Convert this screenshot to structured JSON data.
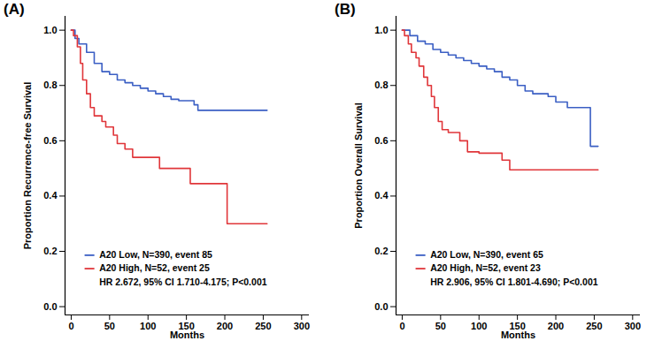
{
  "chart_data": [
    {
      "type": "line",
      "title": "(A)",
      "x_label": "Months",
      "y_label": "Proportion Recurrence-free Survival",
      "xlim": [
        -8,
        310
      ],
      "xticks": [
        0,
        50,
        100,
        150,
        200,
        250,
        300
      ],
      "ylim": [
        -0.03,
        1.05
      ],
      "yticks": [
        {
          "value": 0,
          "label": "0.0"
        },
        {
          "value": 0.2,
          "label": "0.2"
        },
        {
          "value": 0.4,
          "label": "0.4"
        },
        {
          "value": 0.6,
          "label": "0.6"
        },
        {
          "value": 0.8,
          "label": "0.8"
        },
        {
          "value": 1,
          "label": "1.0"
        }
      ],
      "legend": "bottom-left",
      "line_style": "step",
      "annotations": [
        "HR 2.672, 95% CI 1.710-4.175; P<0.001"
      ],
      "series": [
        {
          "name": "A20 Low, N=390, event 85",
          "color": "#3b5fc4",
          "x": [
            0,
            5,
            10,
            20,
            30,
            40,
            50,
            60,
            70,
            80,
            90,
            100,
            110,
            120,
            130,
            140,
            160,
            165,
            255
          ],
          "values": [
            1.0,
            0.97,
            0.95,
            0.92,
            0.88,
            0.85,
            0.84,
            0.82,
            0.81,
            0.8,
            0.79,
            0.78,
            0.77,
            0.76,
            0.75,
            0.745,
            0.73,
            0.71,
            0.71
          ]
        },
        {
          "name": "A20 High, N=52, event 25",
          "color": "#e0363a",
          "x": [
            0,
            3,
            8,
            12,
            15,
            20,
            25,
            30,
            40,
            45,
            55,
            60,
            70,
            80,
            115,
            155,
            203,
            255
          ],
          "values": [
            1.0,
            0.98,
            0.94,
            0.88,
            0.82,
            0.77,
            0.72,
            0.69,
            0.67,
            0.65,
            0.62,
            0.59,
            0.57,
            0.54,
            0.5,
            0.445,
            0.3,
            0.3
          ]
        }
      ]
    },
    {
      "type": "line",
      "title": "(B)",
      "x_label": "Months",
      "y_label": "Proportion Overall Survival",
      "xlim": [
        -8,
        310
      ],
      "xticks": [
        0,
        50,
        100,
        150,
        200,
        250,
        300
      ],
      "ylim": [
        -0.03,
        1.05
      ],
      "yticks": [
        {
          "value": 0,
          "label": "0.0"
        },
        {
          "value": 0.2,
          "label": "0.2"
        },
        {
          "value": 0.4,
          "label": "0.4"
        },
        {
          "value": 0.6,
          "label": "0.6"
        },
        {
          "value": 0.8,
          "label": "0.8"
        },
        {
          "value": 1,
          "label": "1.0"
        }
      ],
      "legend": "bottom-left",
      "line_style": "step",
      "annotations": [
        "HR 2.906, 95% CI 1.801-4.690; P<0.001"
      ],
      "series": [
        {
          "name": "A20 Low, N=390, event 65",
          "color": "#3b5fc4",
          "x": [
            0,
            10,
            20,
            30,
            40,
            50,
            60,
            70,
            80,
            90,
            100,
            110,
            120,
            130,
            140,
            150,
            160,
            170,
            190,
            200,
            215,
            245,
            255
          ],
          "values": [
            1.0,
            0.98,
            0.96,
            0.95,
            0.93,
            0.92,
            0.91,
            0.9,
            0.89,
            0.88,
            0.87,
            0.86,
            0.85,
            0.83,
            0.82,
            0.8,
            0.78,
            0.77,
            0.76,
            0.74,
            0.72,
            0.58,
            0.58
          ]
        },
        {
          "name": "A20 High, N=52, event 23",
          "color": "#e0363a",
          "x": [
            0,
            3,
            8,
            12,
            18,
            22,
            28,
            33,
            38,
            42,
            47,
            52,
            60,
            75,
            85,
            100,
            130,
            140,
            255
          ],
          "values": [
            1.0,
            0.98,
            0.95,
            0.92,
            0.9,
            0.87,
            0.83,
            0.8,
            0.76,
            0.72,
            0.67,
            0.64,
            0.63,
            0.6,
            0.56,
            0.555,
            0.53,
            0.495,
            0.495
          ]
        }
      ]
    }
  ]
}
